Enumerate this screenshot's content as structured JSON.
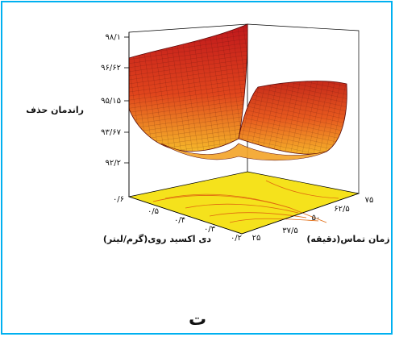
{
  "chart_data": {
    "type": "surface3d",
    "zlabel": "راندمان حذف",
    "xlabel": "دی اکسید روی(گرم/لیتر)",
    "ylabel": "زمان تماس(دقیقه)",
    "z_ticks": [
      "۹۲/۲",
      "۹۳/۶۷",
      "۹۵/۱۵",
      "۹۶/۶۲",
      "۹۸/۱"
    ],
    "x_ticks": [
      "۰/۲",
      "۰/۳",
      "۰/۴",
      "۰/۵",
      "۰/۶"
    ],
    "y_ticks": [
      "۲۵",
      "۳۷/۵",
      "۵۰",
      "۶۲/۵",
      "۷۵"
    ],
    "x_range": [
      0.2,
      0.6
    ],
    "y_range": [
      25,
      75
    ],
    "z_range": [
      92.2,
      98.1
    ],
    "surface_approx": {
      "description_grid_x": [
        0.2,
        0.3,
        0.4,
        0.5,
        0.6
      ],
      "description_grid_y": [
        25,
        37.5,
        50,
        62.5,
        75
      ],
      "z": [
        [
          96.8,
          95.0,
          94.0,
          94.2,
          95.3
        ],
        [
          95.5,
          93.8,
          93.0,
          93.3,
          94.6
        ],
        [
          95.0,
          93.2,
          92.5,
          92.8,
          94.2
        ],
        [
          95.6,
          93.6,
          92.8,
          93.0,
          94.6
        ],
        [
          98.1,
          95.8,
          94.6,
          95.0,
          96.7
        ]
      ]
    },
    "colors": {
      "surface_high": "#b0161b",
      "surface_low": "#f2b21e",
      "floor": "#f5e21c",
      "contour": "#e06a10"
    }
  },
  "caption": "ت"
}
